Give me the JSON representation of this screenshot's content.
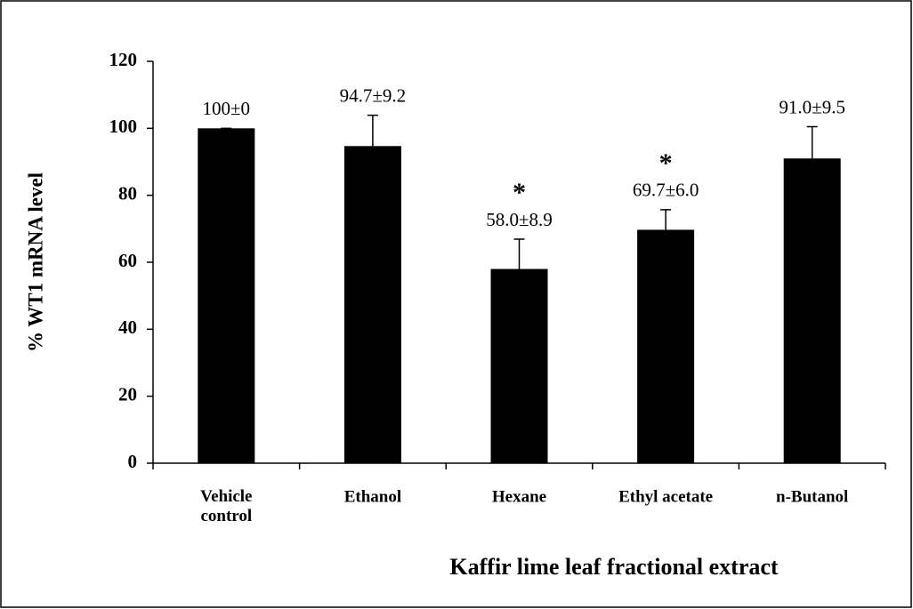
{
  "chart_data": {
    "type": "bar",
    "x_label": "Kaffir lime leaf fractional extract",
    "y_label": "% WT1 mRNA level",
    "categories": [
      "Vehicle\ncontrol",
      "Ethanol",
      "Hexane",
      "Ethyl acetate",
      "n-Butanol"
    ],
    "values": [
      100,
      94.7,
      58.0,
      69.7,
      91.0
    ],
    "errors": [
      0,
      9.2,
      8.9,
      6.0,
      9.5
    ],
    "value_labels": [
      "100±0",
      "94.7±9.2",
      "58.0±8.9",
      "69.7±6.0",
      "91.0±9.5"
    ],
    "annotations": [
      {
        "text": "*",
        "category": "Hexane"
      },
      {
        "text": "*",
        "category": "Ethyl acetate"
      }
    ],
    "color": "#000000",
    "ylim": [
      0,
      120
    ],
    "yticks": [
      0,
      20,
      40,
      60,
      80,
      100,
      120
    ],
    "grid": false
  }
}
